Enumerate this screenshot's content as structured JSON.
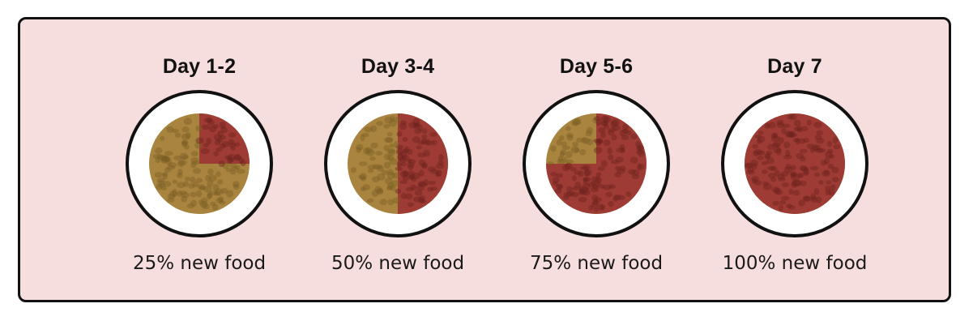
{
  "colors": {
    "panel_background": "#f7dede",
    "border": "#111111",
    "plate": "#ffffff",
    "old_food": "#a8843e",
    "new_food": "#9e3b34"
  },
  "steps": [
    {
      "title": "Day 1-2",
      "caption": "25% new food",
      "new_food_fraction": 0.25,
      "icon": "food-bowl-icon"
    },
    {
      "title": "Day 3-4",
      "caption": "50% new food",
      "new_food_fraction": 0.5,
      "icon": "food-bowl-icon"
    },
    {
      "title": "Day 5-6",
      "caption": "75% new food",
      "new_food_fraction": 0.75,
      "icon": "food-bowl-icon"
    },
    {
      "title": "Day 7",
      "caption": "100% new food",
      "new_food_fraction": 1.0,
      "icon": "food-bowl-icon"
    }
  ]
}
